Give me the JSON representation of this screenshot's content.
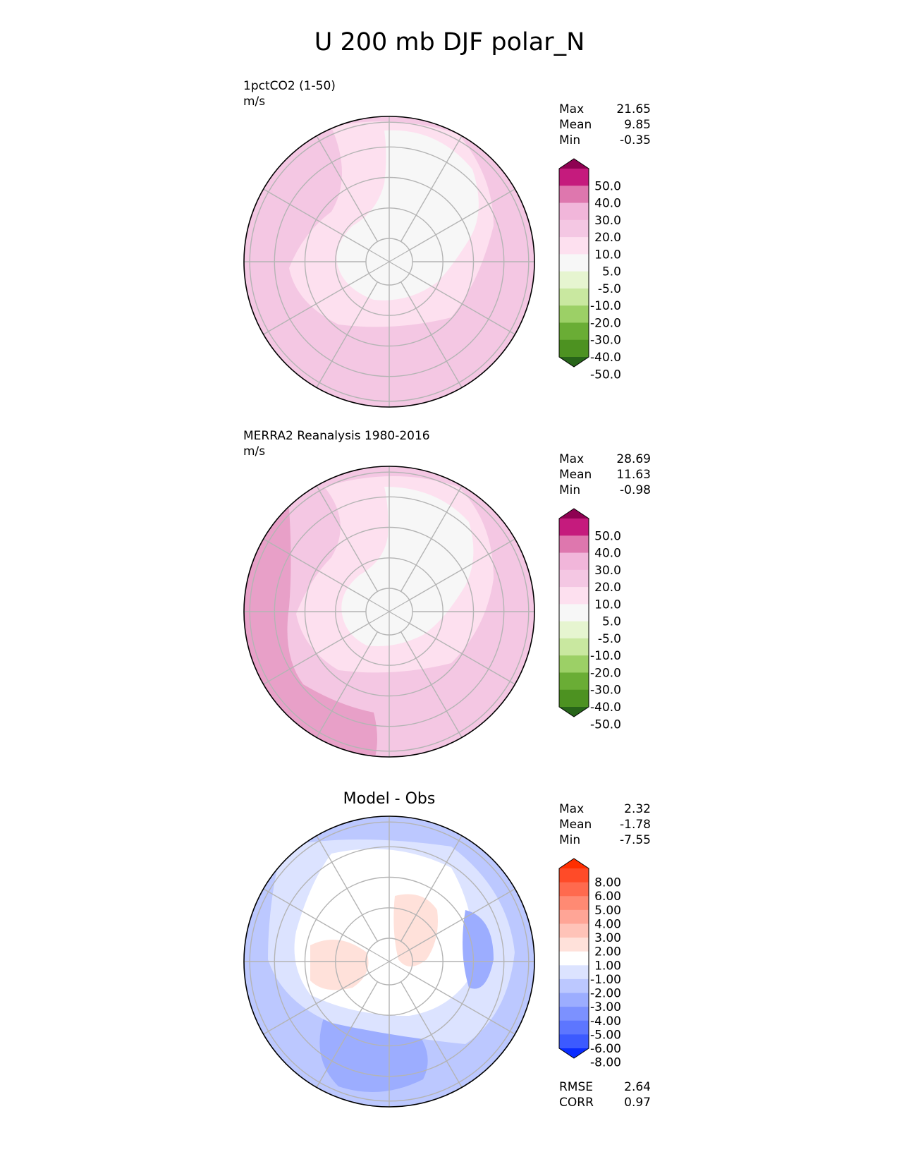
{
  "title": "U 200 mb DJF polar_N",
  "panels": [
    {
      "id": "test",
      "label": "1pctCO2 (1-50)",
      "units": "m/s",
      "stats": [
        {
          "name": "Max",
          "value": "21.65"
        },
        {
          "name": "Mean",
          "value": "9.85"
        },
        {
          "name": "Min",
          "value": "-0.35"
        }
      ],
      "colorbar": {
        "ticks": [
          "50.0",
          "40.0",
          "30.0",
          "20.0",
          "10.0",
          "5.0",
          "-5.0",
          "-10.0",
          "-20.0",
          "-30.0",
          "-40.0",
          "-50.0"
        ],
        "colors": [
          "#8e0152",
          "#c51b7d",
          "#de77ae",
          "#f1b6da",
          "#f4c7e3",
          "#fde0ef",
          "#f7f7f7",
          "#e6f5d0",
          "#c9e8a0",
          "#9cd066",
          "#6aad35",
          "#4d9221",
          "#276419"
        ]
      }
    },
    {
      "id": "ref",
      "label": "MERRA2 Reanalysis 1980-2016",
      "units": "m/s",
      "stats": [
        {
          "name": "Max",
          "value": "28.69"
        },
        {
          "name": "Mean",
          "value": "11.63"
        },
        {
          "name": "Min",
          "value": "-0.98"
        }
      ],
      "colorbar": {
        "ticks": [
          "50.0",
          "40.0",
          "30.0",
          "20.0",
          "10.0",
          "5.0",
          "-5.0",
          "-10.0",
          "-20.0",
          "-30.0",
          "-40.0",
          "-50.0"
        ],
        "colors": [
          "#8e0152",
          "#c51b7d",
          "#de77ae",
          "#f1b6da",
          "#f4c7e3",
          "#fde0ef",
          "#f7f7f7",
          "#e6f5d0",
          "#c9e8a0",
          "#9cd066",
          "#6aad35",
          "#4d9221",
          "#276419"
        ]
      }
    },
    {
      "id": "diff",
      "title": "Model - Obs",
      "stats": [
        {
          "name": "Max",
          "value": "2.32"
        },
        {
          "name": "Mean",
          "value": "-1.78"
        },
        {
          "name": "Min",
          "value": "-7.55"
        }
      ],
      "metrics": [
        {
          "name": "RMSE",
          "value": "2.64"
        },
        {
          "name": "CORR",
          "value": "0.97"
        }
      ],
      "colorbar": {
        "ticks": [
          "8.00",
          "6.00",
          "5.00",
          "4.00",
          "3.00",
          "2.00",
          "1.00",
          "-1.00",
          "-2.00",
          "-3.00",
          "-4.00",
          "-5.00",
          "-6.00",
          "-8.00"
        ],
        "colors": [
          "#ff2e00",
          "#ff4b28",
          "#ff6a4e",
          "#ff8a73",
          "#ffa596",
          "#ffc3b8",
          "#ffe1da",
          "#ffffff",
          "#dce3ff",
          "#bcc8ff",
          "#9cadff",
          "#7c91ff",
          "#5d76ff",
          "#3c5aff",
          "#0a2cff"
        ]
      }
    }
  ],
  "chart_data": [
    {
      "type": "heatmap",
      "projection": "north polar stereographic",
      "label": "1pctCO2 (1-50)",
      "units": "m/s",
      "levels": [
        -50,
        -40,
        -30,
        -20,
        -10,
        -5,
        5,
        10,
        20,
        30,
        40,
        50
      ],
      "max": 21.65,
      "mean": 9.85,
      "min": -0.35
    },
    {
      "type": "heatmap",
      "projection": "north polar stereographic",
      "label": "MERRA2 Reanalysis 1980-2016",
      "units": "m/s",
      "levels": [
        -50,
        -40,
        -30,
        -20,
        -10,
        -5,
        5,
        10,
        20,
        30,
        40,
        50
      ],
      "max": 28.69,
      "mean": 11.63,
      "min": -0.98
    },
    {
      "type": "heatmap",
      "projection": "north polar stereographic",
      "title": "Model - Obs",
      "levels": [
        -8,
        -6,
        -5,
        -4,
        -3,
        -2,
        -1,
        1,
        2,
        3,
        4,
        5,
        6,
        8
      ],
      "max": 2.32,
      "mean": -1.78,
      "min": -7.55,
      "rmse": 2.64,
      "corr": 0.97
    }
  ]
}
